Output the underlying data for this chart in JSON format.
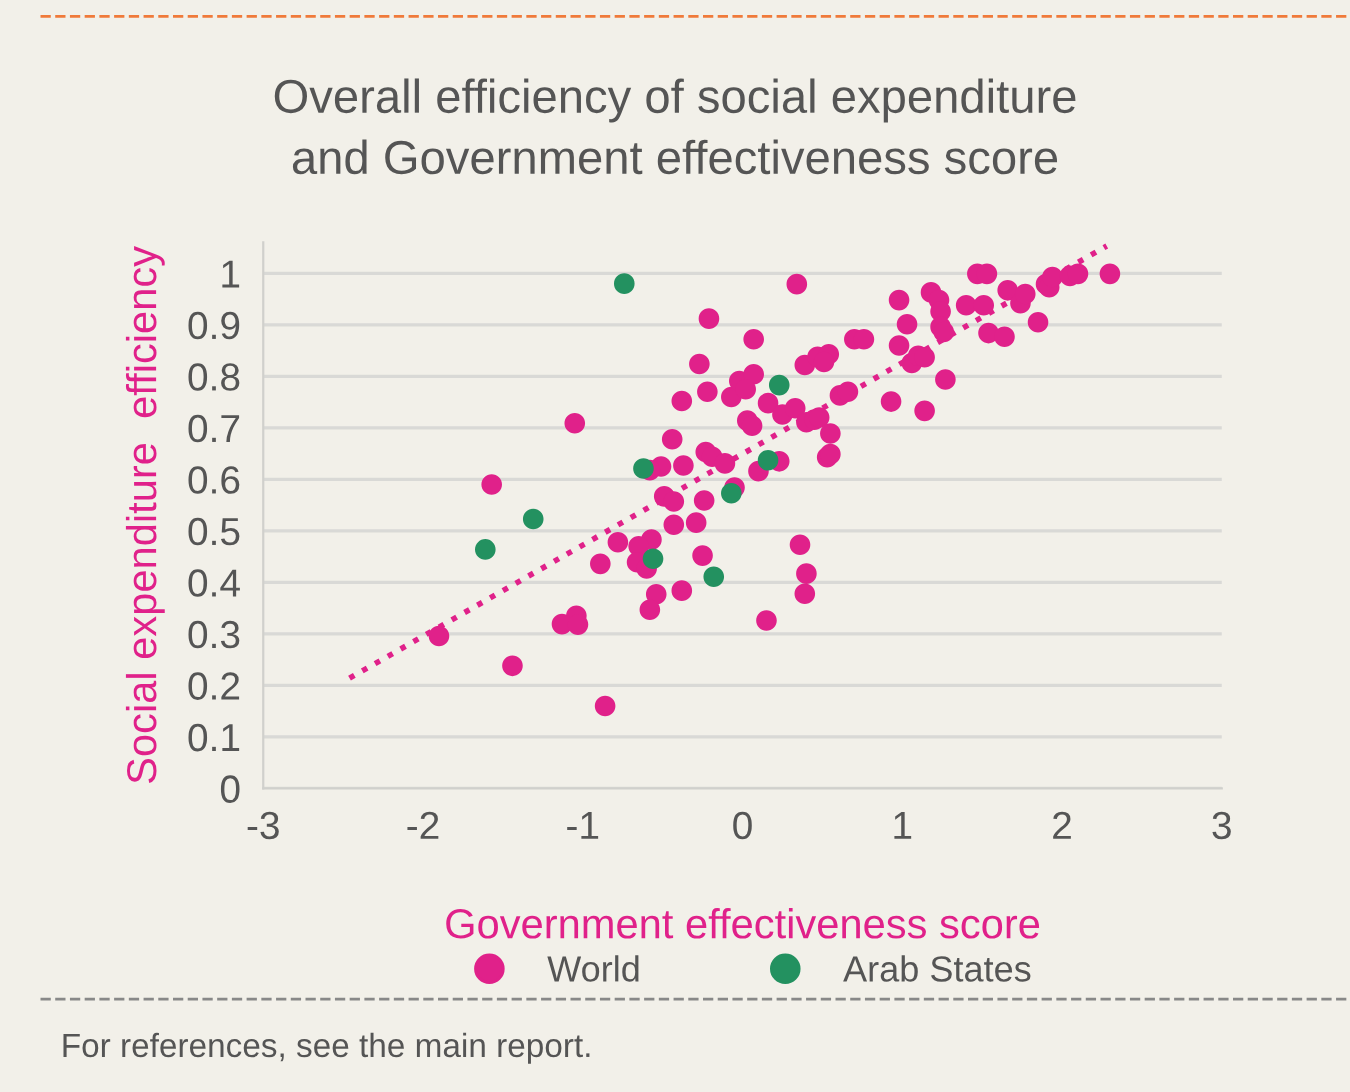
{
  "chart_data": {
    "type": "scatter",
    "title": "Overall efficiency of social expenditure\nand Government effectiveness score",
    "xlabel": "Government effectiveness score",
    "ylabel": "Social expenditure  efficiency",
    "xlim": [
      -3,
      3
    ],
    "ylim": [
      0,
      1.06
    ],
    "xticks": [
      -3,
      -2,
      -1,
      0,
      1,
      2,
      3
    ],
    "yticks": [
      0,
      0.1,
      0.2,
      0.3,
      0.4,
      0.5,
      0.6,
      0.7,
      0.8,
      0.9,
      1
    ],
    "grid": "y",
    "legend": "bottom",
    "marker": "circle",
    "annotations": [
      "For references, see the main report."
    ],
    "series": [
      {
        "name": "World",
        "color": "#e0218a",
        "x": [
          -0.21,
          -0.27,
          -0.22,
          -0.38,
          -0.07,
          -1.05,
          -0.44,
          -0.23,
          -0.19,
          -0.11,
          -0.37,
          -0.51,
          -0.58,
          -1.57,
          -0.05,
          -0.49,
          -0.43,
          -0.24,
          -0.43,
          -0.29,
          -0.57,
          -0.78,
          -0.65,
          -0.66,
          -0.6,
          -0.89,
          -0.25,
          -0.54,
          -0.38,
          -0.58,
          -1.04,
          -1.13,
          -1.03,
          -1.9,
          -1.44,
          -0.86,
          0.34,
          0.07,
          -0.02,
          0.07,
          0.02,
          0.03,
          0.06,
          0.16,
          0.25,
          0.33,
          0.39,
          0.47,
          0.54,
          0.51,
          0.4,
          0.45,
          0.48,
          0.55,
          0.53,
          0.55,
          0.23,
          0.1,
          0.61,
          0.66,
          0.7,
          0.76,
          0.93,
          0.98,
          0.98,
          1.03,
          1.06,
          1.1,
          1.14,
          1.14,
          1.18,
          1.23,
          1.24,
          1.24,
          1.26,
          1.27,
          1.4,
          1.47,
          1.53,
          1.51,
          1.54,
          1.64,
          1.66,
          1.74,
          1.77,
          1.85,
          1.9,
          1.92,
          1.94,
          2.05,
          2.1,
          2.3,
          0.36,
          0.4,
          0.39,
          0.15
        ],
        "values": [
          0.912,
          0.824,
          0.77,
          0.752,
          0.76,
          0.709,
          0.678,
          0.653,
          0.644,
          0.631,
          0.627,
          0.625,
          0.618,
          0.59,
          0.584,
          0.567,
          0.557,
          0.559,
          0.512,
          0.516,
          0.483,
          0.478,
          0.47,
          0.439,
          0.427,
          0.436,
          0.452,
          0.377,
          0.384,
          0.347,
          0.335,
          0.319,
          0.318,
          0.296,
          0.238,
          0.16,
          0.979,
          0.872,
          0.791,
          0.804,
          0.775,
          0.714,
          0.704,
          0.748,
          0.726,
          0.738,
          0.822,
          0.838,
          0.843,
          0.828,
          0.711,
          0.716,
          0.72,
          0.689,
          0.643,
          0.649,
          0.635,
          0.616,
          0.763,
          0.77,
          0.872,
          0.872,
          0.751,
          0.948,
          0.86,
          0.901,
          0.826,
          0.84,
          0.837,
          0.733,
          0.963,
          0.948,
          0.926,
          0.896,
          0.886,
          0.794,
          0.938,
          0.999,
          0.999,
          0.938,
          0.884,
          0.877,
          0.967,
          0.942,
          0.96,
          0.905,
          0.979,
          0.973,
          0.993,
          0.995,
          0.999,
          0.999,
          0.473,
          0.417,
          0.378,
          0.326
        ]
      },
      {
        "name": "Arab States",
        "color": "#239160",
        "x": [
          -0.74,
          -1.31,
          -1.61,
          -0.62,
          -0.56,
          -0.18,
          -0.07,
          0.23,
          0.16
        ],
        "values": [
          0.98,
          0.523,
          0.464,
          0.621,
          0.446,
          0.411,
          0.573,
          0.783,
          0.637
        ]
      },
      {
        "type": "line",
        "color": "#e0218a",
        "line_style": "dotted",
        "marker": "none",
        "x": [
          -2.46,
          2.28
        ],
        "values": [
          0.214,
          1.053
        ]
      }
    ]
  }
}
